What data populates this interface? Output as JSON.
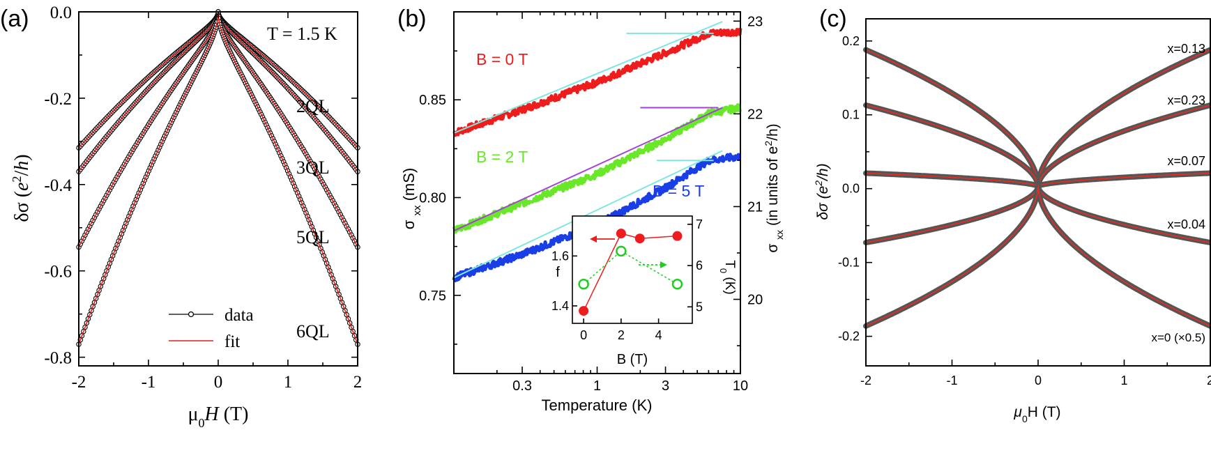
{
  "chart_data": [
    {
      "panel_label": "(a)",
      "type": "line",
      "xlabel": "μ0H (T)",
      "ylabel": "δσ (e²/h)",
      "xlim": [
        -2,
        2
      ],
      "ylim": [
        -0.82,
        0.0
      ],
      "xticks": [
        "-2",
        "-1",
        "0",
        "1",
        "2"
      ],
      "yticks": [
        "0.0",
        "-0.2",
        "-0.4",
        "-0.6",
        "-0.8"
      ],
      "annotation": "T = 1.5 K",
      "legend": {
        "placement": "bottom-center",
        "entries": [
          "data",
          "fit"
        ]
      },
      "series": [
        {
          "name": "2QL",
          "end_value": -0.315,
          "style": "data+fit"
        },
        {
          "name": "3QL",
          "end_value": -0.37,
          "style": "data+fit"
        },
        {
          "name": "5QL",
          "end_value": -0.545,
          "style": "data+fit"
        },
        {
          "name": "6QL",
          "end_value": -0.77,
          "style": "data+fit"
        }
      ]
    },
    {
      "panel_label": "(b)",
      "type": "line",
      "xlabel": "Temperature  (K)",
      "ylabel": "σ xx  (mS)",
      "ylabel_right": "σ xx  (in units of e²/h)",
      "xscale": "log",
      "xlim": [
        0.1,
        10
      ],
      "ylim": [
        0.71,
        0.895
      ],
      "ylim_right": [
        19.2,
        23.1
      ],
      "xticks": [
        "0.3",
        "1",
        "3",
        "10"
      ],
      "yticks": [
        "0.85",
        "0.80",
        "0.75"
      ],
      "yticks_right": [
        "23",
        "22",
        "21",
        "20"
      ],
      "series": [
        {
          "name": "B = 0  T",
          "color": "#ee1c1c",
          "x": [
            0.1,
            0.3,
            1,
            3,
            6,
            10
          ],
          "y": [
            0.833,
            0.845,
            0.859,
            0.874,
            0.884,
            0.885
          ]
        },
        {
          "name": "B = 2  T",
          "color": "#69e82a",
          "x": [
            0.1,
            0.3,
            1,
            3,
            6,
            10
          ],
          "y": [
            0.783,
            0.797,
            0.812,
            0.83,
            0.843,
            0.846
          ]
        },
        {
          "name": "B = 5  T",
          "color": "#1a3ee6",
          "x": [
            0.1,
            0.3,
            1,
            3,
            6,
            10
          ],
          "y": [
            0.759,
            0.771,
            0.786,
            0.805,
            0.819,
            0.821
          ]
        }
      ],
      "inset": {
        "xlabel": "B  (T)",
        "ylabel": "f",
        "ylabel_right": "T 0 (K)",
        "xticks": [
          "0",
          "2",
          "4"
        ],
        "yticks": [
          "1.4",
          "1.6"
        ],
        "yticks_right": [
          "5",
          "6",
          "7"
        ],
        "xlim": [
          -0.6,
          5.8
        ],
        "ylim": [
          1.33,
          1.76
        ],
        "ylim_right": [
          4.6,
          7.2
        ],
        "f": {
          "x": [
            0,
            2,
            3,
            5
          ],
          "y": [
            1.38,
            1.69,
            1.67,
            1.68
          ],
          "color": "#ee1c1c"
        },
        "T0": {
          "x": [
            0,
            2,
            5
          ],
          "y": [
            5.55,
            6.35,
            5.55
          ],
          "color": "#22cc22"
        }
      }
    },
    {
      "panel_label": "(c)",
      "type": "line",
      "xlabel": "μ0H (T)",
      "ylabel": "δσ (e²/h)",
      "xlim": [
        -2,
        2
      ],
      "ylim": [
        -0.24,
        0.23
      ],
      "xticks": [
        "-2",
        "-1",
        "0",
        "1",
        "2"
      ],
      "yticks": [
        "0.2",
        "0.1",
        "0.0",
        "-0.1",
        "-0.2"
      ],
      "series": [
        {
          "name": "x=0.13",
          "end_value": 0.188
        },
        {
          "name": "x=0.23",
          "end_value": 0.113
        },
        {
          "name": "x=0.07",
          "end_value": 0.021
        },
        {
          "name": "x=0.04",
          "end_value": -0.073
        },
        {
          "name": "x=0 (×0.5)",
          "end_value": -0.186
        }
      ]
    }
  ]
}
